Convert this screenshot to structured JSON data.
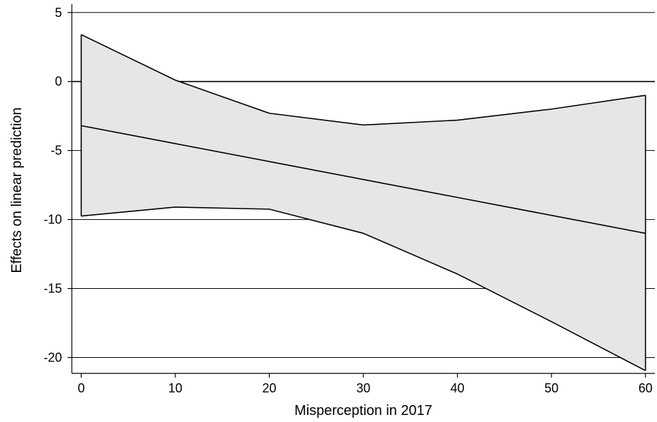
{
  "chart_data": {
    "type": "line",
    "title": "",
    "xlabel": "Misperception in 2017",
    "ylabel": "Effects on linear prediction",
    "xlim": [
      -1,
      61
    ],
    "ylim": [
      -21.15,
      5.6
    ],
    "x_ticks": [
      0,
      10,
      20,
      30,
      40,
      50,
      60
    ],
    "y_ticks": [
      5,
      0,
      -5,
      -10,
      -15,
      -20
    ],
    "grid": "horizontal",
    "legend": "none",
    "reference_line": 0,
    "x": [
      0,
      10,
      20,
      30,
      40,
      50,
      60
    ],
    "series": [
      {
        "values": [
          -3.2,
          -4.5,
          -5.8,
          -7.1,
          -8.4,
          -9.7,
          -11.0
        ]
      },
      {
        "values": [
          3.4,
          0.1,
          -2.3,
          -3.15,
          -2.8,
          -2.0,
          -1.0
        ]
      },
      {
        "values": [
          -9.75,
          -9.1,
          -9.25,
          -11.0,
          -13.95,
          -17.4,
          -20.95
        ]
      }
    ],
    "colors": {
      "band": "#e6e6e6",
      "line": "#000000",
      "grid": "#000000"
    }
  }
}
